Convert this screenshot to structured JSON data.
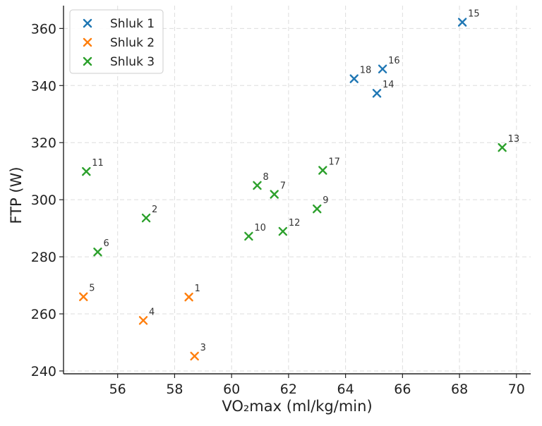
{
  "chart_data": {
    "type": "scatter",
    "title": "",
    "xlabel": "VO₂max (ml/kg/min)",
    "ylabel": "FTP (W)",
    "xlim": [
      54.1,
      70.5
    ],
    "ylim": [
      239,
      368
    ],
    "xticks": [
      56,
      58,
      60,
      62,
      64,
      66,
      68,
      70
    ],
    "yticks": [
      240,
      260,
      280,
      300,
      320,
      340,
      360
    ],
    "grid": true,
    "legend_position": "top-left",
    "series": [
      {
        "name": "Shluk 1",
        "color": "#1f77b4",
        "points": [
          {
            "label": "14",
            "x": 65.1,
            "y": 337.3
          },
          {
            "label": "15",
            "x": 68.1,
            "y": 362.2
          },
          {
            "label": "16",
            "x": 65.3,
            "y": 345.8
          },
          {
            "label": "18",
            "x": 64.3,
            "y": 342.4
          }
        ]
      },
      {
        "name": "Shluk 2",
        "color": "#ff7f0e",
        "points": [
          {
            "label": "1",
            "x": 58.5,
            "y": 265.9
          },
          {
            "label": "3",
            "x": 58.7,
            "y": 245.2
          },
          {
            "label": "4",
            "x": 56.9,
            "y": 257.7
          },
          {
            "label": "5",
            "x": 54.8,
            "y": 266.0
          }
        ]
      },
      {
        "name": "Shluk 3",
        "color": "#2ca02c",
        "points": [
          {
            "label": "2",
            "x": 57.0,
            "y": 293.6
          },
          {
            "label": "6",
            "x": 55.3,
            "y": 281.7
          },
          {
            "label": "7",
            "x": 61.5,
            "y": 301.9
          },
          {
            "label": "8",
            "x": 60.9,
            "y": 305.0
          },
          {
            "label": "9",
            "x": 63.0,
            "y": 296.8
          },
          {
            "label": "10",
            "x": 60.6,
            "y": 287.2
          },
          {
            "label": "11",
            "x": 54.9,
            "y": 309.9
          },
          {
            "label": "12",
            "x": 61.8,
            "y": 288.9
          },
          {
            "label": "13",
            "x": 69.5,
            "y": 318.3
          },
          {
            "label": "17",
            "x": 63.2,
            "y": 310.3
          }
        ]
      }
    ]
  }
}
